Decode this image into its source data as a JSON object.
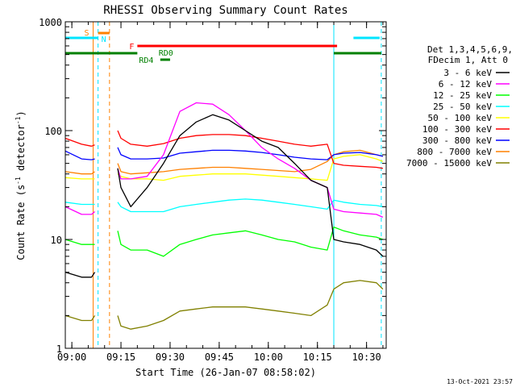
{
  "chart_data": {
    "type": "line",
    "title": "RHESSI Observing Summary Count Rates",
    "xlabel": "Start Time (26-Jan-07 08:58:02)",
    "ylabel_main": "Count Rate (s",
    "ylabel_sup1": "-1",
    "ylabel_mid": " detector",
    "ylabel_sup2": "-1",
    "ylabel_end": ")",
    "footer_date": "13-Oct-2021 23:57",
    "yscale": "log",
    "ylim": [
      1,
      1000
    ],
    "xlim_min": [
      0,
      98
    ],
    "x_ticks": [
      {
        "m": 2,
        "label": "09:00"
      },
      {
        "m": 17,
        "label": "09:15"
      },
      {
        "m": 32,
        "label": "09:30"
      },
      {
        "m": 47,
        "label": "09:45"
      },
      {
        "m": 62,
        "label": "10:00"
      },
      {
        "m": 77,
        "label": "10:15"
      },
      {
        "m": 92,
        "label": "10:30"
      }
    ],
    "y_ticks": [
      {
        "v": 1,
        "label": "1"
      },
      {
        "v": 10,
        "label": "10"
      },
      {
        "v": 100,
        "label": "100"
      },
      {
        "v": 1000,
        "label": "1000"
      }
    ],
    "legend": {
      "position": "right",
      "header1": "Det 1,3,4,5,6,9,",
      "header2": "FDecim 1, Att 0"
    },
    "flag_labels": {
      "S": "S",
      "N": "N",
      "F": "F",
      "RD0": "RD0",
      "RD4": "RD4"
    },
    "flag_colors": {
      "S": "#ff8000",
      "N": "#00e5ff",
      "F": "#ff0000",
      "RD": "#008000"
    },
    "flags": {
      "N": [
        [
          0,
          10
        ],
        [
          88,
          96
        ]
      ],
      "S": [
        [
          10,
          13.5
        ]
      ],
      "F": [
        [
          22,
          83
        ]
      ],
      "RD0": [
        [
          0,
          22
        ],
        [
          82,
          96.5
        ]
      ],
      "RD4": [
        [
          29,
          32
        ]
      ]
    },
    "vlines": [
      {
        "m": 0,
        "color": "#00e5ff",
        "dash": false
      },
      {
        "m": 8.5,
        "color": "#ff8000",
        "dash": false
      },
      {
        "m": 10,
        "color": "#00e5ff",
        "dash": true
      },
      {
        "m": 13.5,
        "color": "#ff8000",
        "dash": true
      },
      {
        "m": 82,
        "color": "#00e5ff",
        "dash": false
      },
      {
        "m": 96.5,
        "color": "#00e5ff",
        "dash": true
      }
    ],
    "x": [
      0,
      5,
      8,
      9,
      15,
      16,
      17,
      20,
      25,
      30,
      35,
      40,
      45,
      50,
      55,
      60,
      65,
      70,
      75,
      80,
      82,
      85,
      90,
      95,
      97
    ],
    "series": [
      {
        "name": "3 - 6 keV",
        "color": "#000000",
        "values": [
          5,
          4.5,
          4.5,
          5,
          null,
          45,
          30,
          20,
          30,
          50,
          90,
          120,
          140,
          125,
          100,
          80,
          70,
          50,
          35,
          30,
          10,
          9.5,
          9,
          8,
          7
        ]
      },
      {
        "name": "6 - 12 keV",
        "color": "#ff00ff",
        "values": [
          20,
          17,
          17,
          18,
          null,
          45,
          36,
          36,
          38,
          60,
          150,
          180,
          175,
          140,
          100,
          70,
          55,
          45,
          35,
          30,
          19,
          18,
          17.5,
          17,
          16
        ]
      },
      {
        "name": "12 - 25 keV",
        "color": "#00ff00",
        "values": [
          10,
          9,
          9,
          9,
          null,
          12,
          9,
          8,
          8,
          7,
          9,
          10,
          11,
          11.5,
          12,
          11,
          10,
          9.5,
          8.5,
          8,
          13,
          12,
          11,
          10.5,
          10
        ]
      },
      {
        "name": "25 - 50 keV",
        "color": "#00ffff",
        "values": [
          22,
          21,
          21,
          21,
          null,
          22,
          20,
          18,
          18,
          18,
          20,
          21,
          22,
          23,
          23.5,
          23,
          22,
          21,
          20,
          19,
          23,
          22,
          21,
          20.5,
          20
        ]
      },
      {
        "name": "50 - 100 keV",
        "color": "#ffff00",
        "values": [
          37,
          36,
          36,
          36,
          null,
          40,
          38,
          36,
          36,
          35,
          38,
          39,
          40,
          40,
          40,
          39,
          38,
          37,
          36,
          35,
          55,
          58,
          60,
          55,
          52
        ]
      },
      {
        "name": "100 - 300 keV",
        "color": "#ff0000",
        "values": [
          85,
          75,
          72,
          74,
          null,
          100,
          85,
          75,
          72,
          76,
          85,
          90,
          92,
          92,
          90,
          85,
          80,
          75,
          72,
          75,
          50,
          48,
          47,
          46,
          45
        ]
      },
      {
        "name": "300 - 800 keV",
        "color": "#0000ff",
        "values": [
          65,
          55,
          54,
          55,
          null,
          70,
          60,
          55,
          55,
          56,
          62,
          64,
          66,
          66,
          65,
          63,
          60,
          57,
          55,
          54,
          60,
          62,
          63,
          60,
          58
        ]
      },
      {
        "name": "800 - 7000 keV",
        "color": "#ff8000",
        "values": [
          42,
          40,
          40,
          42,
          null,
          50,
          42,
          40,
          41,
          42,
          44,
          45,
          46,
          46,
          45,
          44,
          43,
          42,
          44,
          52,
          60,
          64,
          66,
          60,
          58
        ]
      },
      {
        "name": "7000 - 15000 keV",
        "color": "#808000",
        "values": [
          2.0,
          1.8,
          1.8,
          2.0,
          null,
          2.0,
          1.6,
          1.5,
          1.6,
          1.8,
          2.2,
          2.3,
          2.4,
          2.4,
          2.4,
          2.3,
          2.2,
          2.1,
          2.0,
          2.5,
          3.5,
          4.0,
          4.2,
          4.0,
          3.5
        ]
      }
    ]
  }
}
